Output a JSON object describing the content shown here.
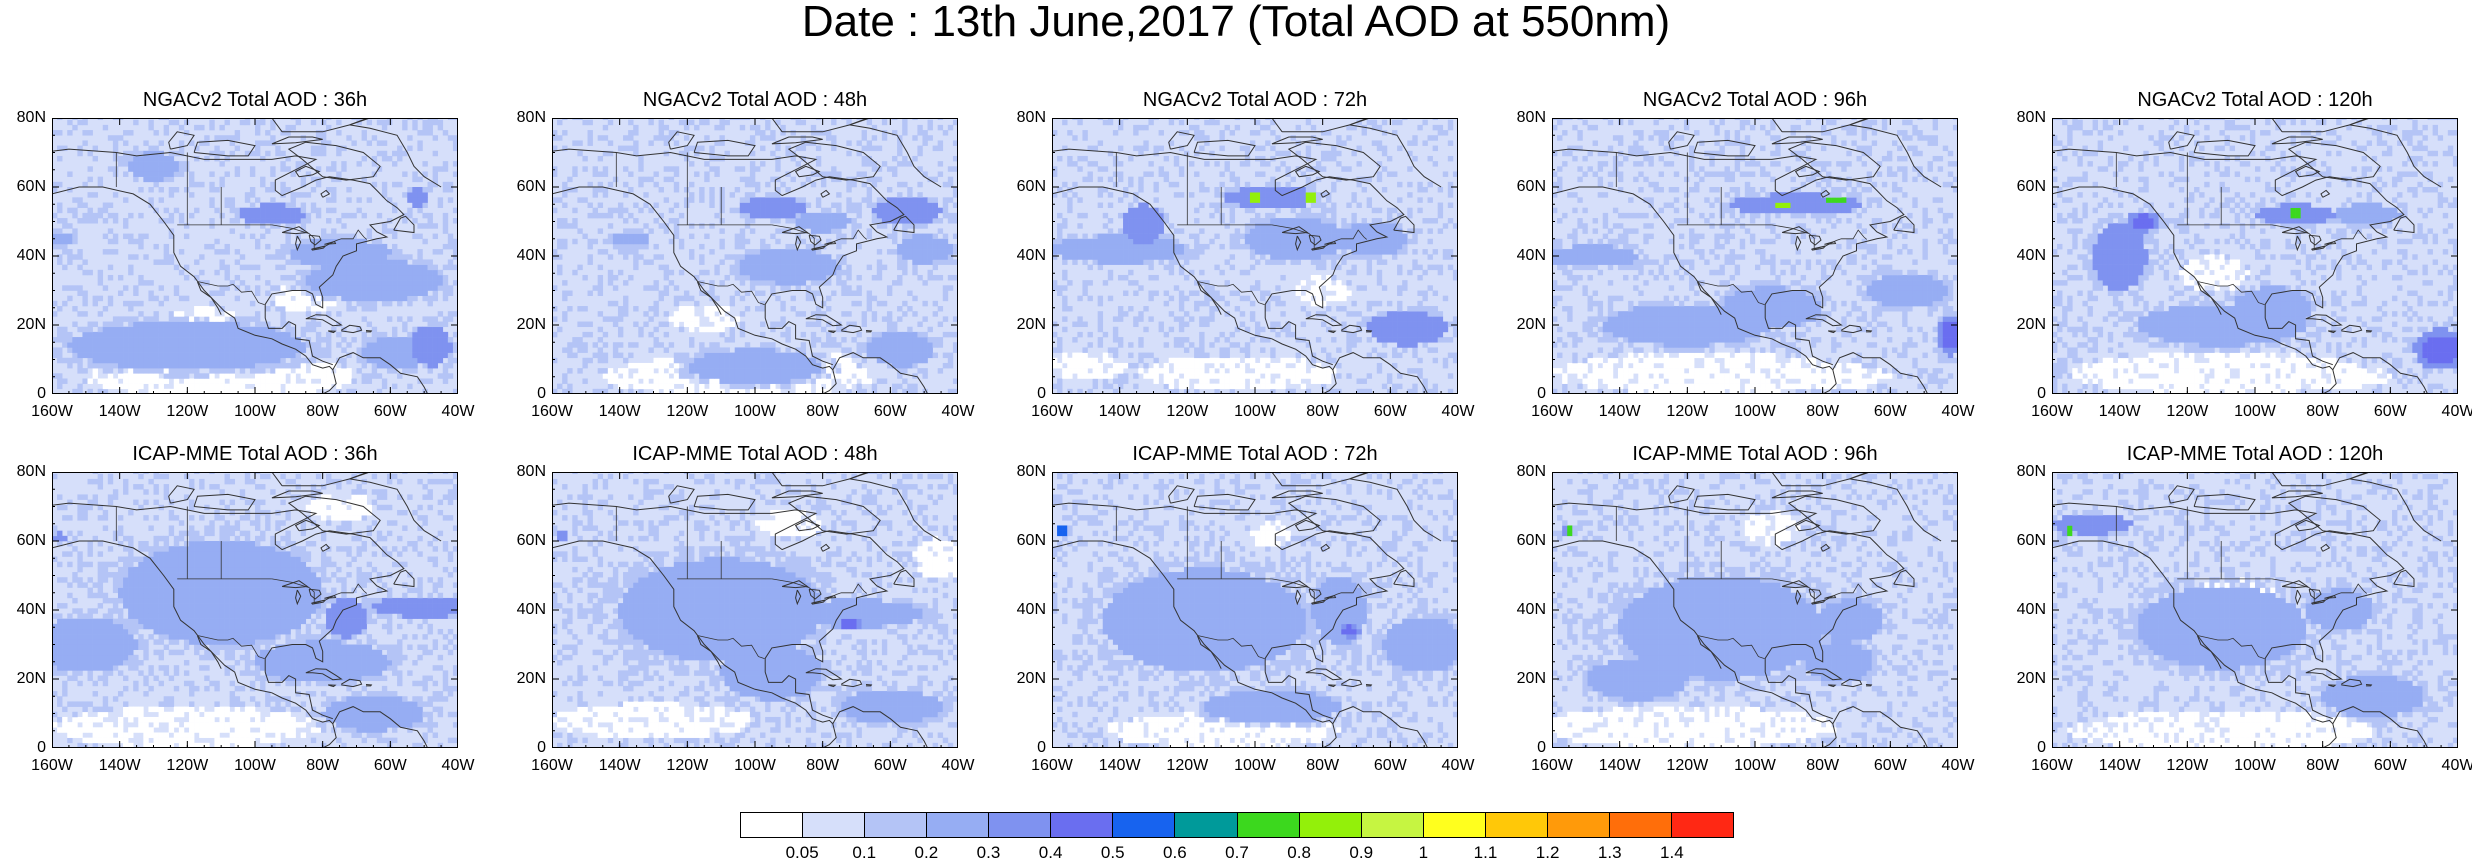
{
  "title": "Date : 13th June,2017 (Total AOD at 550nm)",
  "panels": [
    {
      "title": "NGACv2 Total AOD : 36h",
      "model": "NGACv2",
      "forecast_hour": "36h"
    },
    {
      "title": "NGACv2 Total AOD : 48h",
      "model": "NGACv2",
      "forecast_hour": "48h"
    },
    {
      "title": "NGACv2 Total AOD : 72h",
      "model": "NGACv2",
      "forecast_hour": "72h"
    },
    {
      "title": "NGACv2 Total AOD : 96h",
      "model": "NGACv2",
      "forecast_hour": "96h"
    },
    {
      "title": "NGACv2 Total AOD : 120h",
      "model": "NGACv2",
      "forecast_hour": "120h"
    },
    {
      "title": "ICAP-MME Total AOD : 36h",
      "model": "ICAP-MME",
      "forecast_hour": "36h"
    },
    {
      "title": "ICAP-MME Total AOD : 48h",
      "model": "ICAP-MME",
      "forecast_hour": "48h"
    },
    {
      "title": "ICAP-MME Total AOD : 72h",
      "model": "ICAP-MME",
      "forecast_hour": "72h"
    },
    {
      "title": "ICAP-MME Total AOD : 96h",
      "model": "ICAP-MME",
      "forecast_hour": "96h"
    },
    {
      "title": "ICAP-MME Total AOD : 120h",
      "model": "ICAP-MME",
      "forecast_hour": "120h"
    }
  ],
  "axes": {
    "lat_labels": [
      "80N",
      "60N",
      "40N",
      "20N",
      "0"
    ],
    "lat_values": [
      80,
      60,
      40,
      20,
      0
    ],
    "lon_labels": [
      "160W",
      "140W",
      "120W",
      "100W",
      "80W",
      "60W",
      "40W"
    ],
    "lon_values": [
      -160,
      -140,
      -120,
      -100,
      -80,
      -60,
      -40
    ],
    "lon_range": [
      -160,
      -40
    ],
    "lat_range": [
      0,
      80
    ]
  },
  "colorbar": {
    "levels": [
      "0.05",
      "0.1",
      "0.2",
      "0.3",
      "0.4",
      "0.5",
      "0.6",
      "0.7",
      "0.8",
      "0.9",
      "1",
      "1.1",
      "1.2",
      "1.3",
      "1.4"
    ],
    "colors": [
      "#ffffff",
      "#d6dffa",
      "#b4c4f6",
      "#96adf3",
      "#7f92f0",
      "#6a6ef0",
      "#1763ef",
      "#009a9a",
      "#3cd81e",
      "#93f00a",
      "#c6f541",
      "#ffff1e",
      "#ffc808",
      "#ff9a0a",
      "#ff6e0a",
      "#ff2814"
    ]
  },
  "background_color": "#d6dffa",
  "coast_color": "#333333"
}
